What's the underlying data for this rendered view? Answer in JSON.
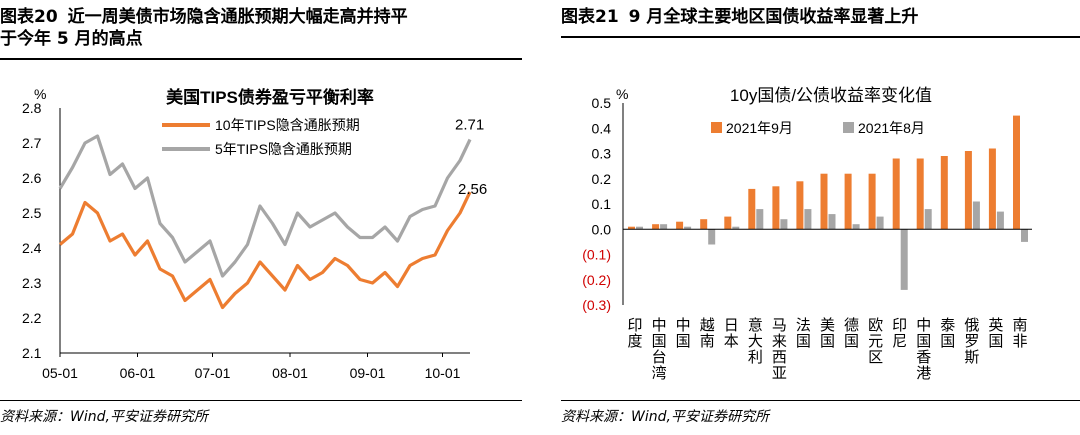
{
  "left": {
    "figure_label": "图表20",
    "figure_title_line1": "近一周美债市场隐含通胀预期大幅走高并持平",
    "figure_title_line2": "于今年 5 月的高点",
    "source": "资料来源：Wind,平安证券研究所"
  },
  "right": {
    "figure_label": "图表21",
    "figure_title": "9 月全球主要地区国债收益率显著上升",
    "source": "资料来源：Wind,平安证券研究所"
  },
  "colors": {
    "orange": "#ED7D31",
    "gray": "#A6A6A6",
    "negative_label": "#D00000"
  },
  "chart_data": [
    {
      "type": "line",
      "title": "美国TIPS债券盈亏平衡利率",
      "ylabel": "%",
      "ylim": [
        2.1,
        2.8
      ],
      "yticks": [
        "2.8",
        "2.7",
        "2.6",
        "2.5",
        "2.4",
        "2.3",
        "2.2",
        "2.1"
      ],
      "xticks": [
        "05-01",
        "06-01",
        "07-01",
        "08-01",
        "09-01",
        "10-01"
      ],
      "x_range": [
        0,
        164
      ],
      "xtick_positions": [
        0,
        31,
        61,
        92,
        123,
        153
      ],
      "legend_position": "top-center",
      "series": [
        {
          "name": "10年TIPS隐含通胀预期",
          "color": "#ED7D31",
          "x": [
            0,
            5,
            10,
            15,
            20,
            25,
            30,
            35,
            40,
            45,
            50,
            55,
            60,
            65,
            70,
            75,
            80,
            85,
            90,
            95,
            100,
            105,
            110,
            115,
            120,
            125,
            130,
            135,
            140,
            145,
            150,
            155,
            160,
            164
          ],
          "values": [
            2.41,
            2.44,
            2.53,
            2.5,
            2.42,
            2.44,
            2.38,
            2.42,
            2.34,
            2.32,
            2.25,
            2.28,
            2.31,
            2.23,
            2.27,
            2.3,
            2.36,
            2.32,
            2.28,
            2.35,
            2.31,
            2.33,
            2.37,
            2.35,
            2.31,
            2.3,
            2.33,
            2.29,
            2.35,
            2.37,
            2.38,
            2.45,
            2.5,
            2.56
          ],
          "end_label": "2.56"
        },
        {
          "name": "5年TIPS隐含通胀预期",
          "color": "#A6A6A6",
          "x": [
            0,
            5,
            10,
            15,
            20,
            25,
            30,
            35,
            40,
            45,
            50,
            55,
            60,
            65,
            70,
            75,
            80,
            85,
            90,
            95,
            100,
            105,
            110,
            115,
            120,
            125,
            130,
            135,
            140,
            145,
            150,
            155,
            160,
            164
          ],
          "values": [
            2.57,
            2.63,
            2.7,
            2.72,
            2.61,
            2.64,
            2.57,
            2.6,
            2.47,
            2.43,
            2.36,
            2.39,
            2.42,
            2.32,
            2.36,
            2.41,
            2.52,
            2.47,
            2.41,
            2.5,
            2.46,
            2.48,
            2.5,
            2.46,
            2.43,
            2.43,
            2.46,
            2.42,
            2.49,
            2.51,
            2.52,
            2.6,
            2.65,
            2.71
          ],
          "end_label": "2.71"
        }
      ]
    },
    {
      "type": "bar",
      "title": "10y国债/公债收益率变化值",
      "ylabel": "%",
      "ylim": [
        -0.3,
        0.5
      ],
      "yticks": [
        "0.5",
        "0.4",
        "0.3",
        "0.2",
        "0.1",
        "0.0",
        "(0.1)",
        "(0.2)",
        "(0.3)"
      ],
      "legend_position": "top",
      "categories": [
        "印度",
        "中国台湾",
        "中国",
        "越南",
        "日本",
        "意大利",
        "马来西亚",
        "法国",
        "美国",
        "德国",
        "欧元区",
        "印尼",
        "中国香港",
        "泰国",
        "俄罗斯",
        "英国",
        "南非"
      ],
      "series": [
        {
          "name": "2021年9月",
          "color": "#ED7D31",
          "values": [
            0.01,
            0.02,
            0.03,
            0.04,
            0.05,
            0.16,
            0.17,
            0.19,
            0.22,
            0.22,
            0.22,
            0.28,
            0.28,
            0.29,
            0.31,
            0.32,
            0.45
          ]
        },
        {
          "name": "2021年8月",
          "color": "#A6A6A6",
          "values": [
            0.01,
            0.02,
            0.01,
            -0.06,
            0.01,
            0.08,
            0.04,
            0.08,
            0.06,
            0.02,
            0.05,
            -0.24,
            0.08,
            0.0,
            0.11,
            0.07,
            -0.05
          ]
        }
      ]
    }
  ]
}
